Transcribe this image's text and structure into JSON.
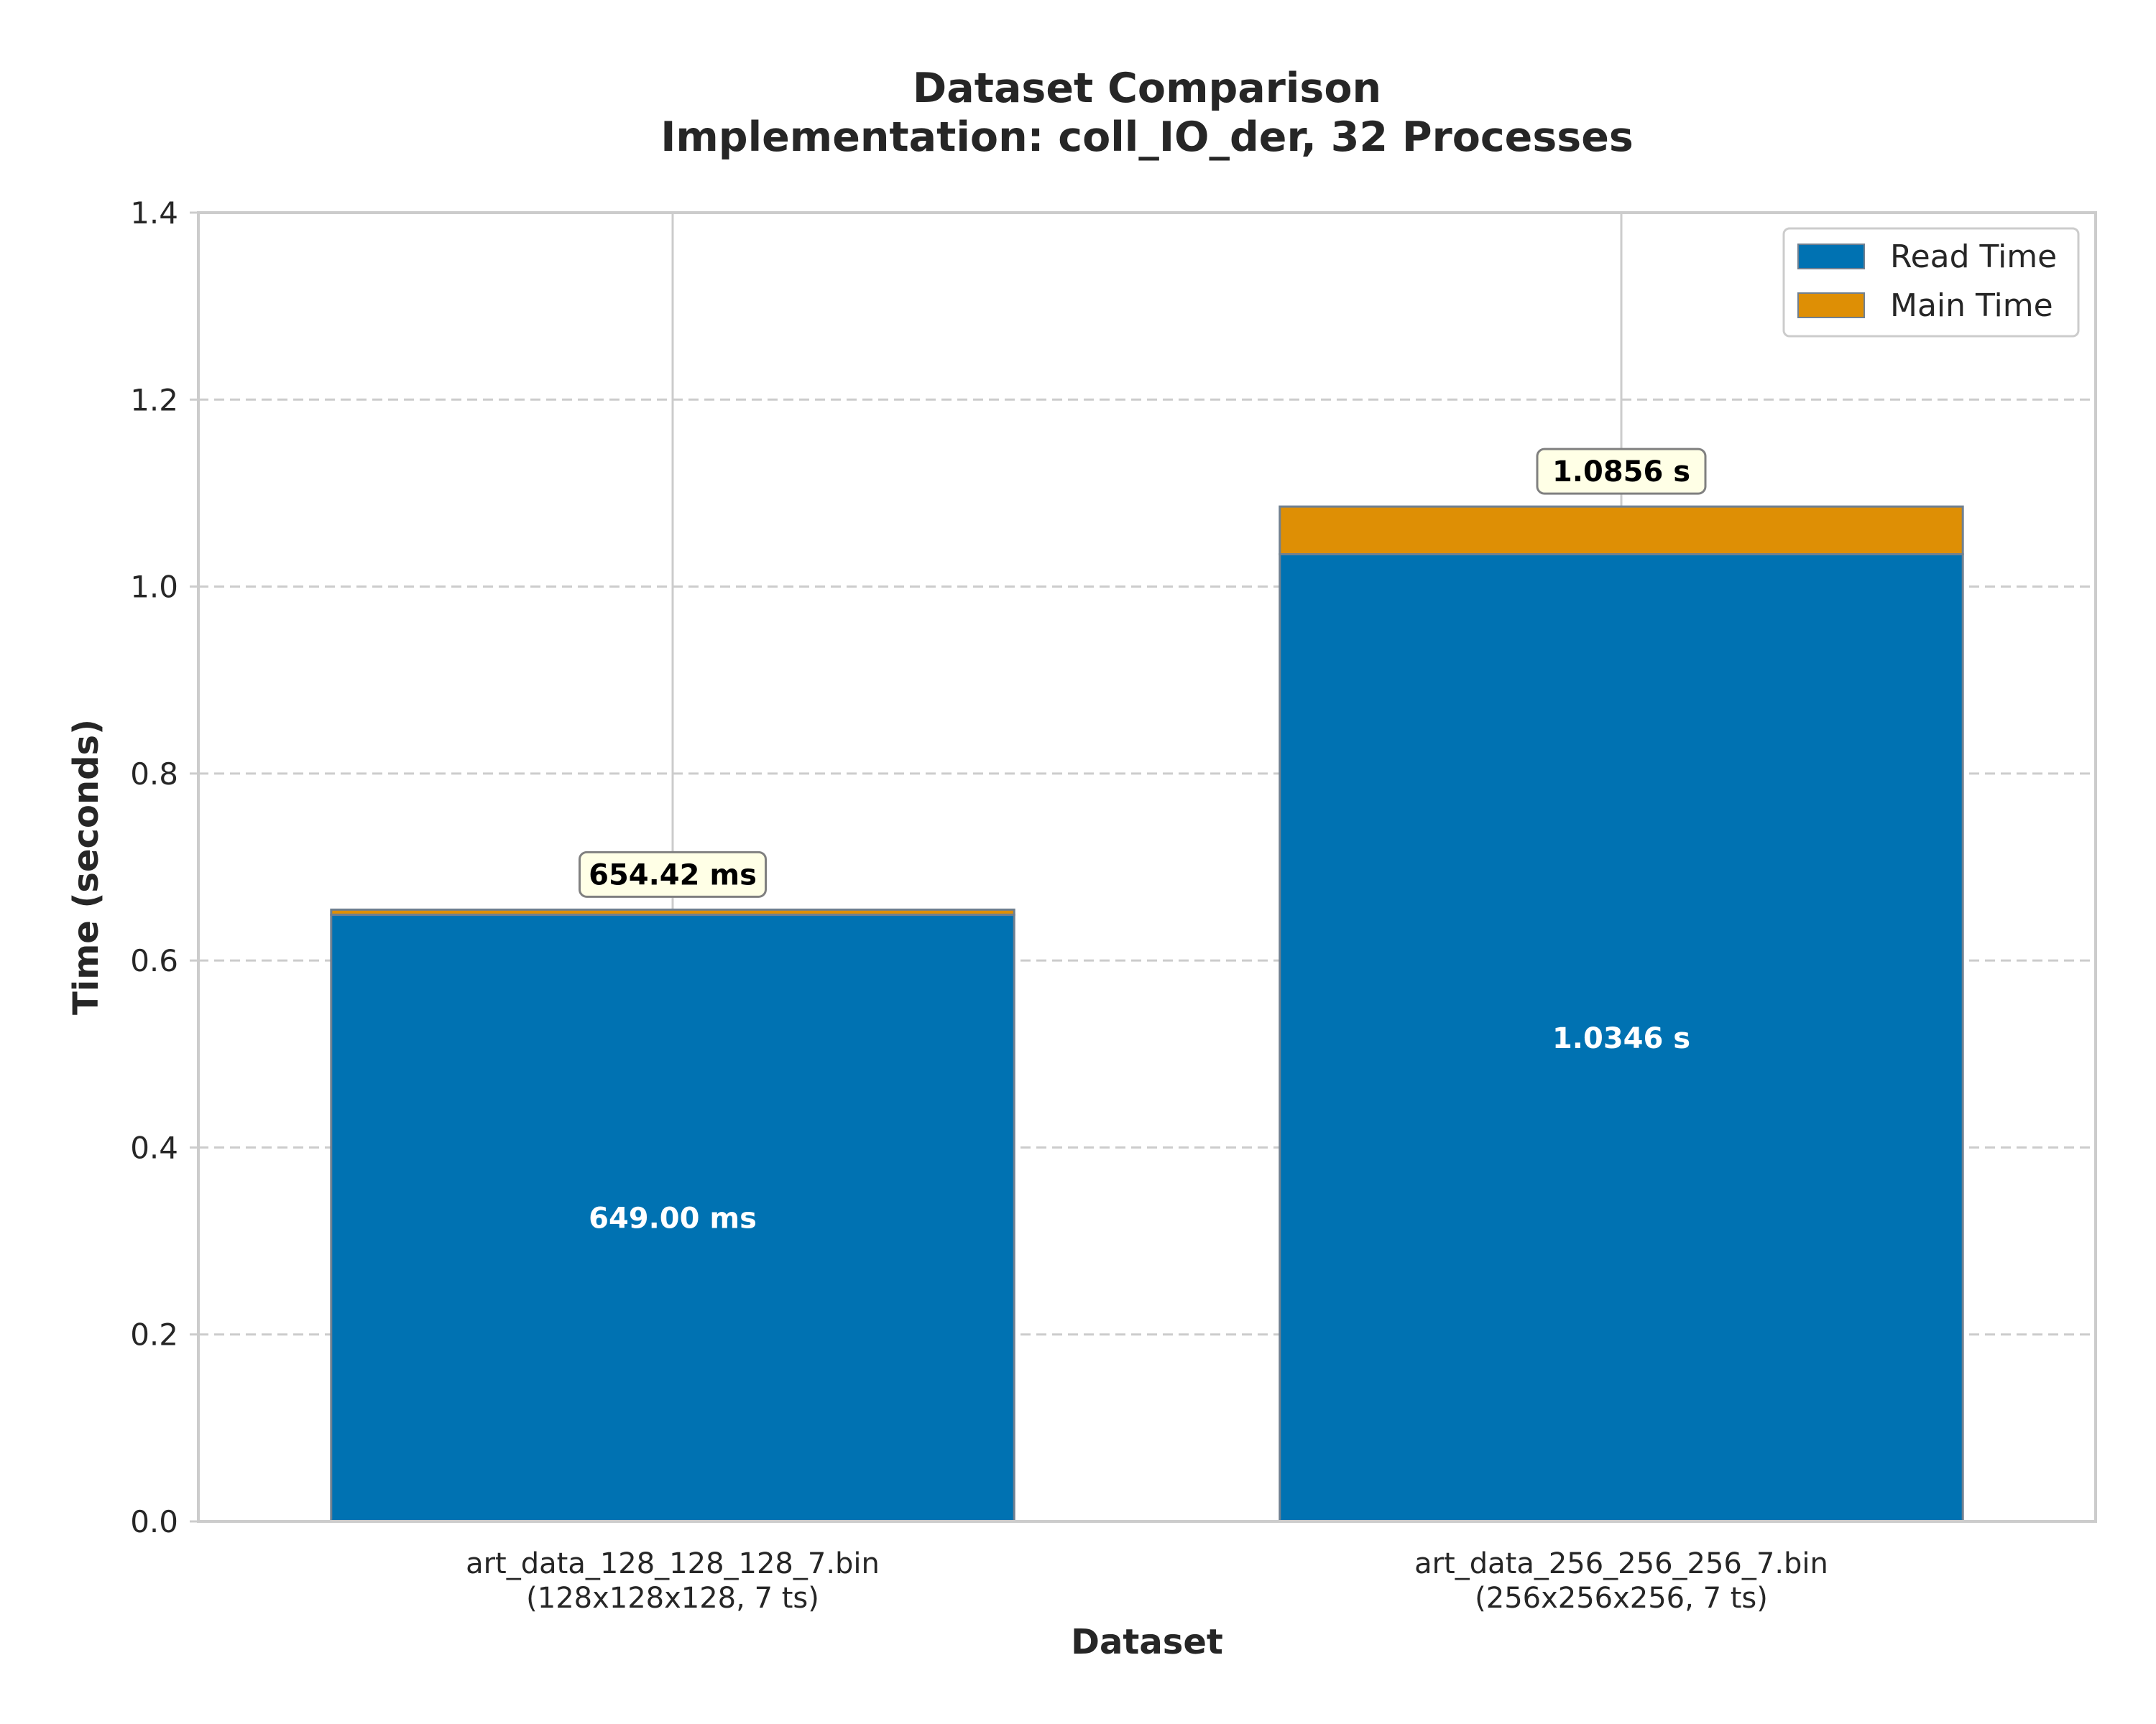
{
  "chart_data": {
    "type": "bar",
    "stacked": true,
    "title": "Dataset Comparison",
    "subtitle": "Implementation: coll_IO_der, 32 Processes",
    "xlabel": "Dataset",
    "ylabel": "Time (seconds)",
    "ylim": [
      0,
      1.4
    ],
    "yticks": [
      "0.0",
      "0.2",
      "0.4",
      "0.6",
      "0.8",
      "1.0",
      "1.2",
      "1.4"
    ],
    "grid": true,
    "legend_position": "top-right",
    "categories": [
      {
        "name": "art_data_128_128_128_7.bin",
        "detail": "(128x128x128, 7 ts)"
      },
      {
        "name": "art_data_256_256_256_7.bin",
        "detail": "(256x256x256, 7 ts)"
      }
    ],
    "series": [
      {
        "name": "Read Time",
        "color": "#0072b2",
        "values": [
          0.649,
          1.0346
        ]
      },
      {
        "name": "Main Time",
        "color": "#de8f05",
        "values": [
          0.00542,
          0.051
        ]
      }
    ],
    "inner_labels": [
      "649.00 ms",
      "1.0346 s"
    ],
    "total_labels": [
      "654.42 ms",
      "1.0856 s"
    ],
    "totals": [
      0.65442,
      1.0856
    ]
  }
}
